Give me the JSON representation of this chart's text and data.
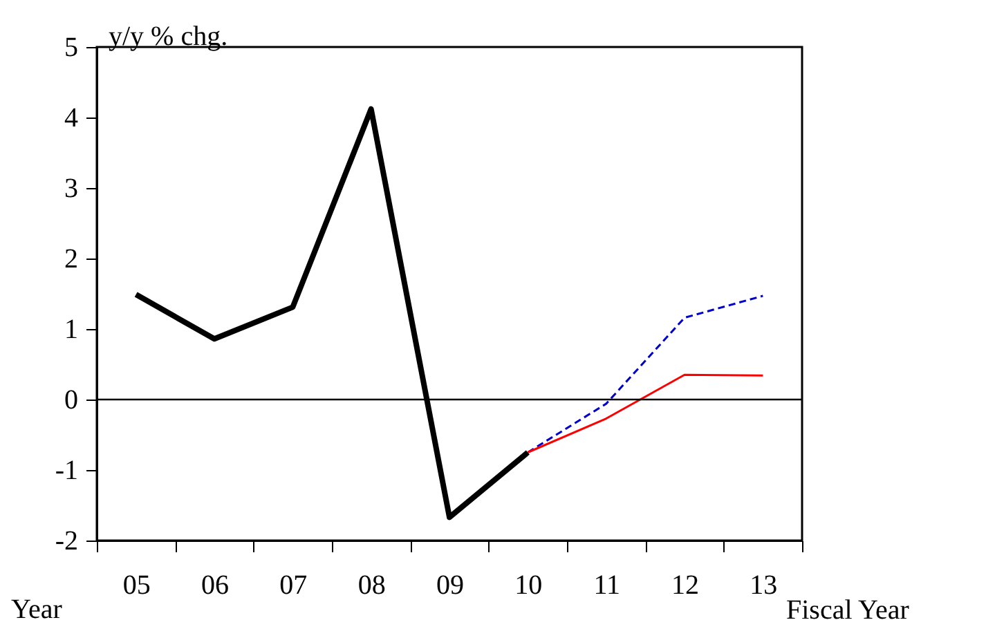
{
  "chart_data": {
    "type": "line",
    "ylabel": "y/y % chg.",
    "xlabel": "Fiscal Year",
    "annotations": [
      "Year"
    ],
    "categories": [
      "05",
      "06",
      "07",
      "08",
      "09",
      "10",
      "11",
      "12",
      "13"
    ],
    "series": [
      {
        "color": "#000000",
        "line_style": "solid",
        "values": [
          1.49,
          0.86,
          1.31,
          4.12,
          -1.67,
          -0.75,
          null,
          null,
          null
        ]
      },
      {
        "color": "#0000cc",
        "line_style": "dashed",
        "values": [
          null,
          null,
          null,
          null,
          null,
          -0.75,
          -0.06,
          1.16,
          1.47
        ]
      },
      {
        "color": "#ff0000",
        "line_style": "solid",
        "values": [
          null,
          null,
          null,
          null,
          null,
          -0.75,
          -0.27,
          0.35,
          0.34
        ]
      }
    ],
    "ylim": [
      -2,
      5
    ],
    "yticks": [
      -2,
      -1,
      0,
      1,
      2,
      3,
      4,
      5
    ],
    "ref_lines": [
      {
        "axis": "y",
        "value": 0,
        "color": "#000000"
      }
    ],
    "grid": false,
    "marker": "none"
  }
}
